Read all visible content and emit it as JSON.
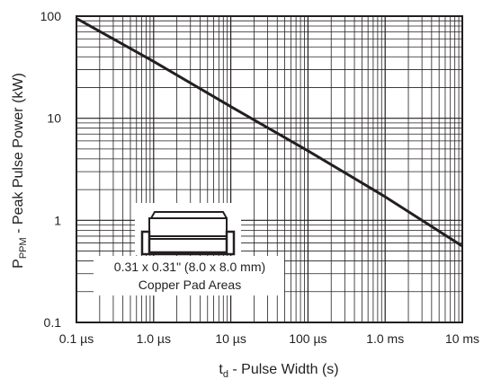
{
  "chart_data": {
    "type": "line",
    "x_scale": "log",
    "y_scale": "log",
    "grid": true,
    "xlim": [
      "0.1 µs",
      "10 ms"
    ],
    "ylim": [
      0.1,
      100
    ],
    "x_ticks": [
      "0.1 µs",
      "1.0 µs",
      "10 µs",
      "100 µs",
      "1.0 ms",
      "10 ms"
    ],
    "y_ticks": [
      "0.1",
      "1",
      "10",
      "100"
    ],
    "x_tick_values_s": [
      1e-07,
      1e-06,
      1e-05,
      0.0001,
      0.001,
      0.01
    ],
    "y_tick_values_kw": [
      0.1,
      1,
      10,
      100
    ],
    "ylabel": {
      "prefix": "P",
      "subscript": "PPM",
      "rest": " - Peak Pulse Power (kW)"
    },
    "xlabel": {
      "prefix": "t",
      "subscript": "d",
      "rest": " - Pulse Width (s)"
    },
    "series": [
      {
        "x_s": [
          1e-07,
          1e-06,
          1e-05,
          0.0001,
          0.001,
          0.01
        ],
        "y_kw": [
          95,
          36,
          13,
          4.8,
          1.7,
          0.56
        ]
      }
    ],
    "annotation": {
      "line1": "0.31 x 0.31\" (8.0 x 8.0 mm)",
      "line2": "Copper Pad Areas"
    },
    "colors": {
      "grid": "#231f20",
      "line": "#231f20",
      "background": "#ffffff"
    }
  }
}
